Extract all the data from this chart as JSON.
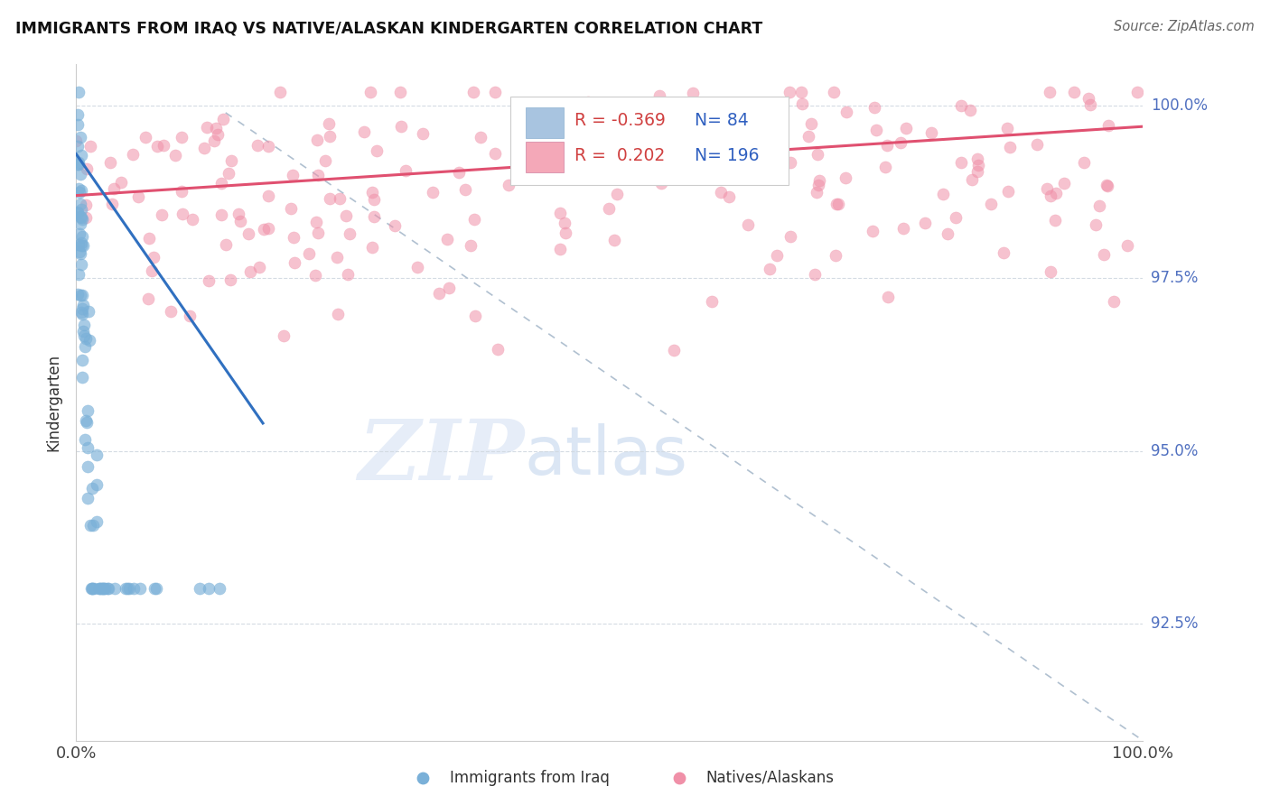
{
  "title": "IMMIGRANTS FROM IRAQ VS NATIVE/ALASKAN KINDERGARTEN CORRELATION CHART",
  "source_text": "Source: ZipAtlas.com",
  "ylabel": "Kindergarten",
  "xmin": 0.0,
  "xmax": 1.0,
  "ymin": 0.908,
  "ymax": 1.006,
  "ytick_positions": [
    0.925,
    0.95,
    0.975,
    1.0
  ],
  "ytick_labels": [
    "92.5%",
    "95.0%",
    "97.5%",
    "100.0%"
  ],
  "xtick_labels": [
    "0.0%",
    "100.0%"
  ],
  "legend_entries": [
    {
      "label": "Immigrants from Iraq",
      "color": "#a8c4e0",
      "R": "-0.369",
      "N": "84"
    },
    {
      "label": "Natives/Alaskans",
      "color": "#f4a8b8",
      "R": "0.202",
      "N": "196"
    }
  ],
  "watermark_zip": "ZIP",
  "watermark_atlas": "atlas",
  "watermark_color_zip": "#c8d8f0",
  "watermark_color_atlas": "#b0c8e8",
  "blue_scatter_color": "#7ab0d8",
  "blue_scatter_edge": "#5090c0",
  "pink_scatter_color": "#f090a8",
  "pink_scatter_edge": "#e06080",
  "blue_line_color": "#3070c0",
  "pink_line_color": "#e05070",
  "blue_line_x": [
    0.0,
    0.175
  ],
  "blue_line_y": [
    0.993,
    0.954
  ],
  "pink_line_x": [
    0.0,
    1.0
  ],
  "pink_line_y": [
    0.987,
    0.997
  ],
  "diag_line_x": [
    0.14,
    1.0
  ],
  "diag_line_y": [
    0.999,
    0.908
  ],
  "diag_line_color": "#b0c0d0",
  "grid_color": "#d0d8e0",
  "spine_color": "#cccccc",
  "tick_label_color": "#5070c0",
  "title_color": "#111111",
  "source_color": "#666666",
  "ylabel_color": "#333333",
  "legend_R_color": "#d04040",
  "legend_N_color": "#3060c0"
}
